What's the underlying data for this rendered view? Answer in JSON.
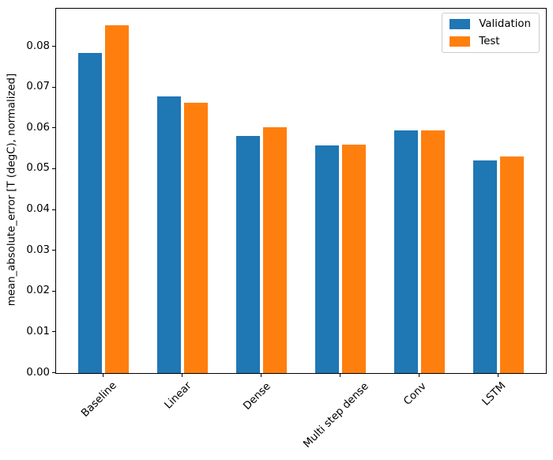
{
  "figure": {
    "background": "#ffffff",
    "axis_color": "#000000",
    "legend_border_color": "#cccccc"
  },
  "chart_data": {
    "type": "bar",
    "title": "",
    "xlabel": "",
    "ylabel": "mean_absolute_error [T (degC), normalized]",
    "categories": [
      "Baseline",
      "Linear",
      "Dense",
      "Multi step dense",
      "Conv",
      "LSTM"
    ],
    "series": [
      {
        "name": "Validation",
        "color": "#1f77b4",
        "values": [
          0.0785,
          0.0678,
          0.0582,
          0.0557,
          0.0594,
          0.0522
        ]
      },
      {
        "name": "Test",
        "color": "#ff7f0e",
        "values": [
          0.0852,
          0.0663,
          0.0603,
          0.056,
          0.0595,
          0.0531
        ]
      }
    ],
    "ylim": [
      0,
      0.0893
    ],
    "yticks": [
      0,
      0.01,
      0.02,
      0.03,
      0.04,
      0.05,
      0.06,
      0.07,
      0.08
    ],
    "ytick_labels": [
      "0.00",
      "0.01",
      "0.02",
      "0.03",
      "0.04",
      "0.05",
      "0.06",
      "0.07",
      "0.08"
    ],
    "bar_width": 0.3,
    "bar_offsets": [
      -0.17,
      0.17
    ],
    "x_margin_fraction": 0.05,
    "x_tick_rotation": 45,
    "grid": false,
    "legend": {
      "position": "upper right",
      "entries": [
        "Validation",
        "Test"
      ]
    }
  }
}
